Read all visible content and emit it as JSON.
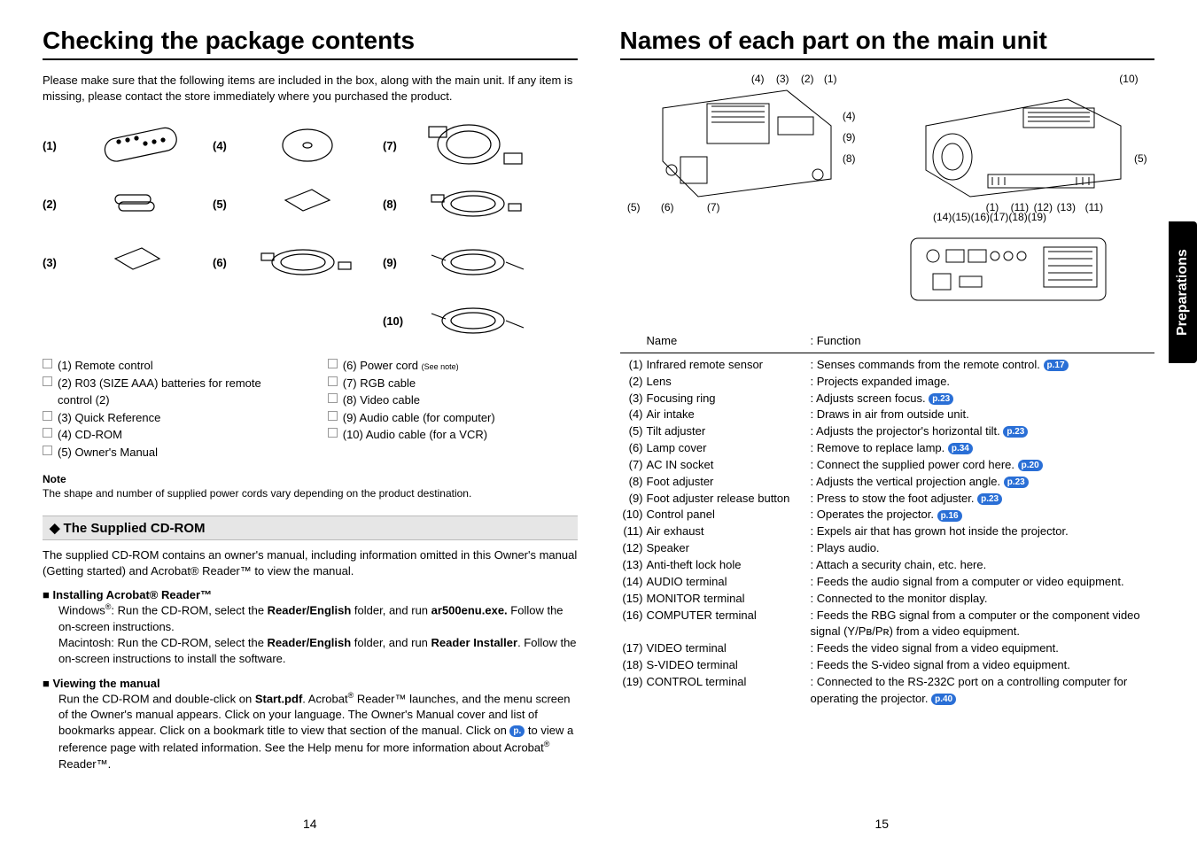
{
  "left": {
    "title": "Checking the package contents",
    "intro": "Please make sure that the following items are included in the box, along with the main unit. If any item is missing, please contact the store immediately where you purchased the product.",
    "package_numbers": [
      "(1)",
      "(2)",
      "(3)",
      "(4)",
      "(5)",
      "(6)",
      "(7)",
      "(8)",
      "(9)",
      "(10)"
    ],
    "contents_col1": [
      "(1)  Remote control",
      "(2)  R03 (SIZE AAA) batteries for remote control (2)",
      "(3)  Quick Reference",
      "(4)  CD-ROM",
      "(5)  Owner's Manual"
    ],
    "contents_col2": [
      [
        "(6)  Power cord ",
        "(See note)"
      ],
      "(7)  RGB cable",
      "(8)  Video cable",
      "(9)  Audio cable (for computer)",
      "(10) Audio cable (for a VCR)"
    ],
    "note_head": "Note",
    "note_body": "The shape and number of supplied power cords vary depending on the product destination.",
    "cdrom_title": "The Supplied CD-ROM",
    "cdrom_body": "The supplied CD-ROM contains an owner's manual, including information omitted in this Owner's manual (Getting started) and Acrobat® Reader™ to view the manual.",
    "install_head": "Installing Acrobat® Reader™",
    "install_body": "Windows®: Run the CD-ROM, select the Reader/English folder, and run ar500enu.exe. Follow the on-screen instructions.\nMacintosh: Run the CD-ROM, select the Reader/English folder, and run Reader Installer. Follow the on-screen instructions to install the software.",
    "view_head": "Viewing the manual",
    "view_body_1": "Run the CD-ROM and double-click on Start.pdf. Acrobat® Reader™ launches, and the menu screen of the Owner's manual appears. Click on your language. The Owner's Manual cover and list of bookmarks appear. Click on a bookmark title to view that section of the manual. Click on ",
    "view_body_pref": "p.",
    "view_body_2": " to view a reference page with related information. See the Help menu for more information about Acrobat® Reader™.",
    "page_num": "14"
  },
  "right": {
    "title": "Names of each part on the main unit",
    "side_tab": "Preparations",
    "diag_top_labels": [
      "(4)",
      "(3)",
      "(2)",
      "(1)",
      "(4)",
      "(9)",
      "(8)",
      "(5)",
      "(6)",
      "(7)"
    ],
    "diag_persp_labels": [
      "(10)",
      "(5)",
      "(1)",
      "(11)",
      "(12)",
      "(13)",
      "(11)"
    ],
    "diag_back_labels": "(14)(15)(16)(17)(18)(19)",
    "table_head_name": "Name",
    "table_head_func": ": Function",
    "parts": [
      {
        "n": "(1)",
        "name": "Infrared remote sensor",
        "func": ": Senses commands from the remote control.",
        "pref": "p.17"
      },
      {
        "n": "(2)",
        "name": "Lens",
        "func": ": Projects expanded image."
      },
      {
        "n": "(3)",
        "name": "Focusing ring",
        "func": ": Adjusts screen focus.",
        "pref": "p.23"
      },
      {
        "n": "(4)",
        "name": "Air intake",
        "func": ": Draws in air from outside unit."
      },
      {
        "n": "(5)",
        "name": "Tilt adjuster",
        "func": ": Adjusts the projector's horizontal tilt.",
        "pref": "p.23"
      },
      {
        "n": "(6)",
        "name": "Lamp cover",
        "func": ": Remove to replace lamp.",
        "pref": "p.34"
      },
      {
        "n": "(7)",
        "name": "AC IN socket",
        "func": ": Connect the supplied power cord here.",
        "pref": "p.20"
      },
      {
        "n": "(8)",
        "name": "Foot adjuster",
        "func": ": Adjusts the vertical projection angle.",
        "pref": "p.23"
      },
      {
        "n": "(9)",
        "name": "Foot adjuster release button",
        "func": ": Press to stow the foot adjuster.",
        "pref": "p.23"
      },
      {
        "n": "(10)",
        "name": "Control panel",
        "func": ": Operates the projector.",
        "pref": "p.16"
      },
      {
        "n": "(11)",
        "name": "Air exhaust",
        "func": ": Expels air that has grown hot inside the projector."
      },
      {
        "n": "(12)",
        "name": "Speaker",
        "func": ": Plays audio."
      },
      {
        "n": "(13)",
        "name": "Anti-theft lock hole",
        "func": ": Attach a security chain, etc. here."
      },
      {
        "n": "(14)",
        "name": "AUDIO terminal",
        "func": ": Feeds the audio signal from a computer or video equipment."
      },
      {
        "n": "(15)",
        "name": "MONITOR terminal",
        "func": ": Connected to the monitor display."
      },
      {
        "n": "(16)",
        "name": "COMPUTER terminal",
        "func": ": Feeds the RBG signal from a computer or the component video signal (Y/Pʙ/Pʀ) from a video equipment."
      },
      {
        "n": "(17)",
        "name": "VIDEO terminal",
        "func": ": Feeds the video signal from a video equipment."
      },
      {
        "n": "(18)",
        "name": "S-VIDEO terminal",
        "func": ": Feeds the S-video signal from a video equipment."
      },
      {
        "n": "(19)",
        "name": "CONTROL terminal",
        "func": ": Connected to the RS-232C port on a controlling computer for operating the projector.",
        "pref": "p.40"
      }
    ],
    "page_num": "15"
  },
  "colors": {
    "pref_bg": "#2a6fd6",
    "section_bg": "#e6e6e6",
    "tab_bg": "#000000"
  }
}
